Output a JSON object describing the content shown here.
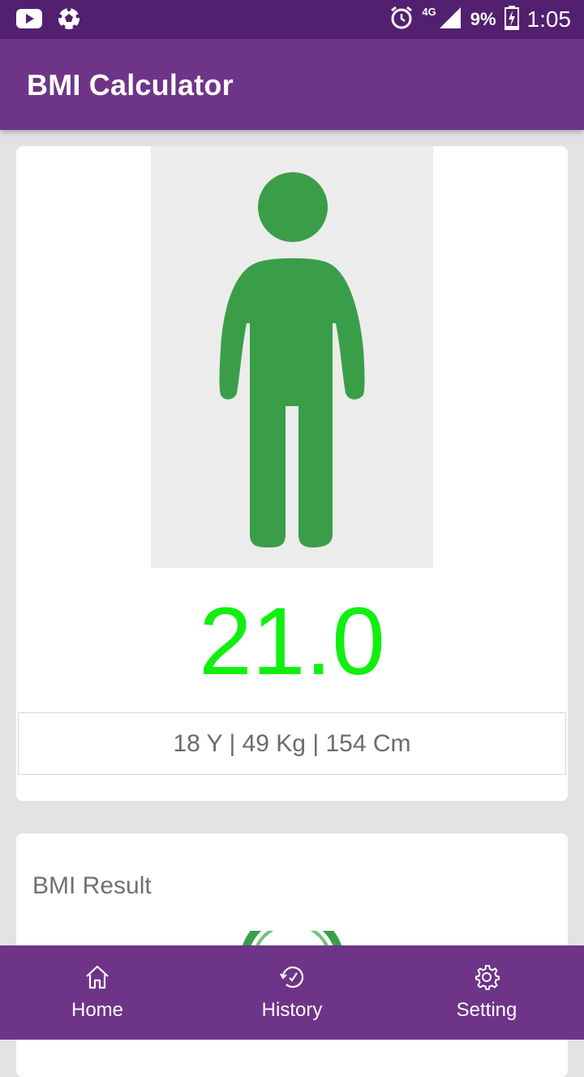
{
  "status_bar": {
    "network": "4G",
    "battery": "9%",
    "time": "1:05",
    "icons": [
      "youtube-icon",
      "soccer-ball-icon",
      "alarm-icon",
      "signal-icon",
      "battery-charging-icon"
    ]
  },
  "app_bar": {
    "title": "BMI Calculator"
  },
  "summary_card": {
    "figure_icon": "person-figure-icon",
    "figure_color": "#3a9e48",
    "bmi_value": "21.0",
    "bmi_color": "#11ef11",
    "details": "18 Y | 49 Kg | 154 Cm"
  },
  "result_card": {
    "title": "BMI Result",
    "gauge_color": "#3a9e48"
  },
  "bottom_nav": {
    "items": [
      {
        "label": "Home",
        "icon": "home-icon"
      },
      {
        "label": "History",
        "icon": "history-icon"
      },
      {
        "label": "Setting",
        "icon": "gear-icon"
      }
    ]
  },
  "colors": {
    "status_bar": "#52206f",
    "primary": "#6e3488",
    "background": "#e3e3e3"
  }
}
